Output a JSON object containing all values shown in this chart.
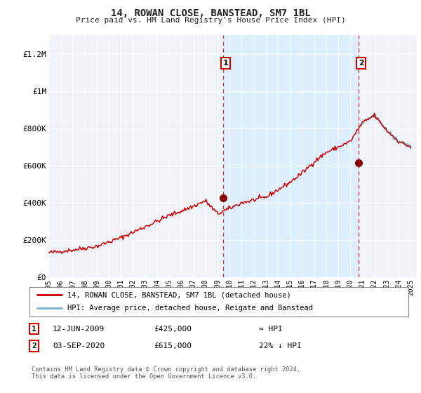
{
  "title": "14, ROWAN CLOSE, BANSTEAD, SM7 1BL",
  "subtitle": "Price paid vs. HM Land Registry's House Price Index (HPI)",
  "ylabel_ticks": [
    "£0",
    "£200K",
    "£400K",
    "£600K",
    "£800K",
    "£1M",
    "£1.2M"
  ],
  "ytick_values": [
    0,
    200000,
    400000,
    600000,
    800000,
    1000000,
    1200000
  ],
  "ylim": [
    0,
    1300000
  ],
  "xlim_start": 1995.0,
  "xlim_end": 2025.5,
  "sale1_date": 2009.44,
  "sale1_price": 425000,
  "sale2_date": 2020.67,
  "sale2_price": 615000,
  "sale1_label": "1",
  "sale2_label": "2",
  "legend_line1": "14, ROWAN CLOSE, BANSTEAD, SM7 1BL (detached house)",
  "legend_line2": "HPI: Average price, detached house, Reigate and Banstead",
  "note1_num": "1",
  "note1_date": "12-JUN-2009",
  "note1_price": "£425,000",
  "note1_hpi": "≈ HPI",
  "note2_num": "2",
  "note2_date": "03-SEP-2020",
  "note2_price": "£615,000",
  "note2_hpi": "22% ↓ HPI",
  "footer": "Contains HM Land Registry data © Crown copyright and database right 2024.\nThis data is licensed under the Open Government Licence v3.0.",
  "line_color_red": "#cc0000",
  "line_color_blue": "#7aafcf",
  "vline_color": "#cc4444",
  "shade_color": "#ddeeff",
  "background_color": "#ffffff",
  "plot_bg_color": "#f0f4f8"
}
